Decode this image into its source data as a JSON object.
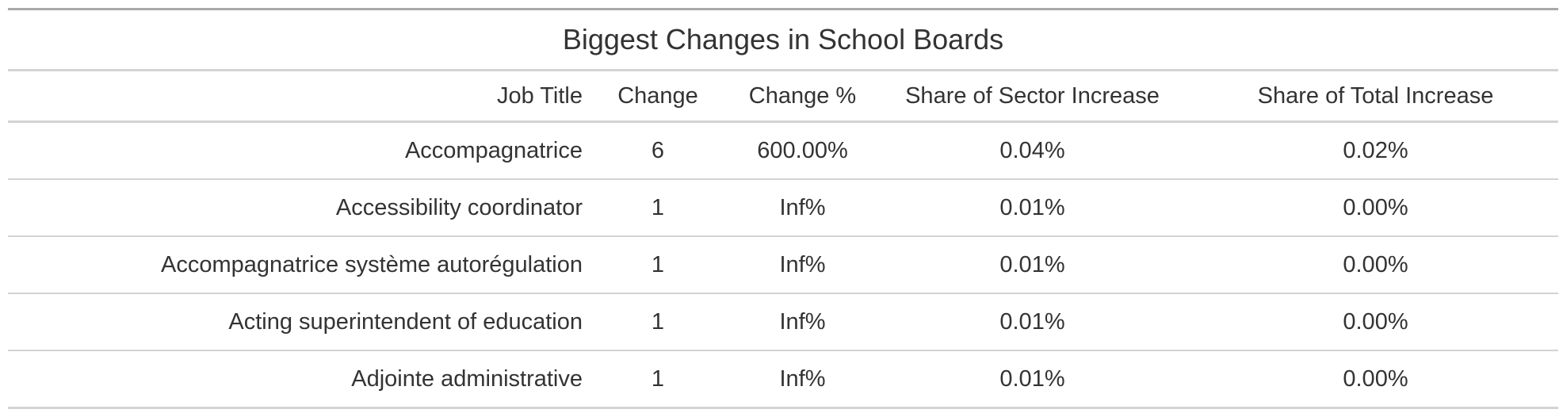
{
  "table": {
    "title": "Biggest Changes in School Boards",
    "columns": [
      "Job Title",
      "Change",
      "Change %",
      "Share of Sector Increase",
      "Share of Total Increase"
    ],
    "rows": [
      [
        "Accompagnatrice",
        "6",
        "600.00%",
        "0.04%",
        "0.02%"
      ],
      [
        "Accessibility coordinator",
        "1",
        "Inf%",
        "0.01%",
        "0.00%"
      ],
      [
        "Accompagnatrice système autorégulation",
        "1",
        "Inf%",
        "0.01%",
        "0.00%"
      ],
      [
        "Acting superintendent of education",
        "1",
        "Inf%",
        "0.01%",
        "0.00%"
      ],
      [
        "Adjointe administrative",
        "1",
        "Inf%",
        "0.01%",
        "0.00%"
      ]
    ]
  }
}
